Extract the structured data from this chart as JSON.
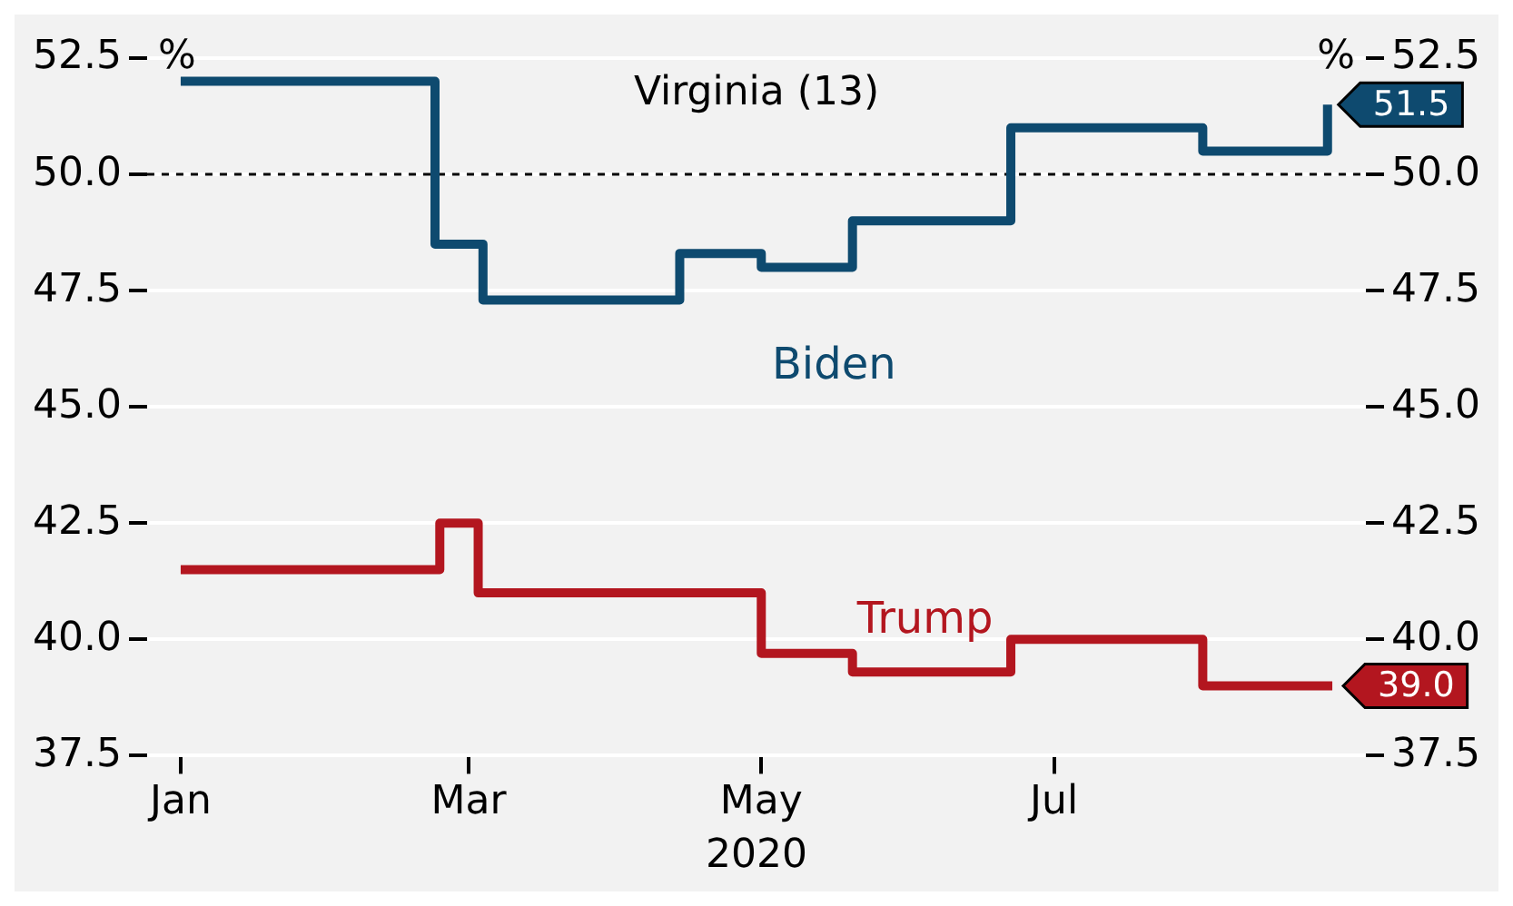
{
  "chart_data": {
    "type": "step",
    "title": "Virginia (13)",
    "xlabel": "2020",
    "ylabel": "%",
    "y2label": "%",
    "xlim": [
      "2019-12-25",
      "2020-09-04"
    ],
    "xticks": [
      {
        "value": "2020-01-01",
        "label": "Jan"
      },
      {
        "value": "2020-03-01",
        "label": "Mar"
      },
      {
        "value": "2020-05-01",
        "label": "May"
      },
      {
        "value": "2020-07-01",
        "label": "Jul"
      }
    ],
    "ylim": [
      37.5,
      52.5
    ],
    "yticks": [
      37.5,
      {
        "value": 40,
        "label": "40.0"
      },
      42.5,
      {
        "value": 45,
        "label": "45.0"
      },
      47.5,
      {
        "value": 50,
        "label": "50.0"
      },
      52.5
    ],
    "y2lim": [
      37.5,
      52.5
    ],
    "y2ticks": [
      37.5,
      {
        "value": 40,
        "label": "40.0"
      },
      42.5,
      {
        "value": 45,
        "label": "45.0"
      },
      47.5,
      {
        "value": 50,
        "label": "50.0"
      },
      52.5
    ],
    "grid": "y",
    "legend": false,
    "ref_lines": [
      {
        "axis": "y",
        "value": 50,
        "color": "#000000",
        "line_style": "dashed"
      }
    ],
    "series": [
      {
        "name": "Biden",
        "color": "#0e4a6f",
        "x": [
          "2020-01-01",
          "2020-02-23",
          "2020-03-04",
          "2020-04-14",
          "2020-05-01",
          "2020-05-20",
          "2020-06-22",
          "2020-08-01",
          "2020-08-27"
        ],
        "values": [
          52.0,
          48.5,
          47.3,
          48.3,
          48.0,
          49.0,
          51.0,
          50.5,
          51.5
        ],
        "value_labels": [
          null,
          null,
          null,
          null,
          null,
          null,
          null,
          null,
          "51.5"
        ]
      },
      {
        "name": "Trump",
        "color": "#b3161f",
        "x": [
          "2020-01-01",
          "2020-02-24",
          "2020-03-03",
          "2020-05-01",
          "2020-05-20",
          "2020-06-22",
          "2020-08-01",
          "2020-08-28"
        ],
        "values": [
          41.5,
          42.5,
          41.0,
          39.7,
          39.3,
          40.0,
          39.0,
          39.0
        ],
        "value_labels": [
          null,
          null,
          null,
          null,
          null,
          null,
          null,
          "39.0"
        ]
      }
    ]
  }
}
